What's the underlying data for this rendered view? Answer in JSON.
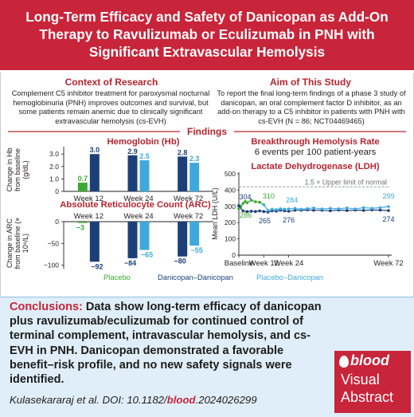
{
  "header": {
    "title": "Long-Term Efficacy and Safety of Danicopan as Add-On Therapy to Ravulizumab or Eculizumab in PNH with Significant Extravascular Hemolysis"
  },
  "context": {
    "title": "Context of Research",
    "text": "Complement C5 inhibitor treatment for paroxysmal nocturnal hemoglobinuria (PNH) improves outcomes and survival, but some patients remain anemic due to clinically significant extravascular hemolysis (cs-EVH)"
  },
  "aim": {
    "title": "Aim of This Study",
    "text": "To report the final long-term findings of a phase 3 study of danicopan, an oral complement factor D inhibitor, as an add-on therapy to a C5 inhibitor in patients with PNH with cs-EVH (N = 86; NCT04469465)"
  },
  "findings": {
    "label": "Findings"
  },
  "breakthrough": {
    "title": "Breakthrough Hemolysis Rate",
    "text": "6 events per 100 patient-years"
  },
  "colors": {
    "placebo": "#3aaa35",
    "danicopan": "#1c3f7a",
    "placebo_danicopan": "#3fa9dd",
    "brand_red": "#c8243a"
  },
  "legend": {
    "placebo": "Placebo",
    "danicopan": "Danicopan–Danicopan",
    "placebo_danicopan": "Placebo–Danicopan"
  },
  "chart_data": [
    {
      "type": "bar",
      "title": "Hemoglobin (Hb)",
      "ylabel": "Change in Hb from baseline (g/dL)",
      "categories": [
        "Week 12",
        "Week 24",
        "Week 72"
      ],
      "yticks": [
        "0",
        "1.0",
        "2.0",
        "3.0"
      ],
      "ylim": [
        0,
        3.4
      ],
      "series": [
        {
          "name": "Placebo",
          "values": [
            0.7,
            null,
            null
          ],
          "labels": [
            "0.7",
            "",
            ""
          ]
        },
        {
          "name": "Danicopan–Danicopan",
          "values": [
            3.0,
            2.9,
            2.8
          ],
          "labels": [
            "3.0",
            "2.9",
            "2.8"
          ]
        },
        {
          "name": "Placebo–Danicopan",
          "values": [
            null,
            2.5,
            2.3
          ],
          "labels": [
            "",
            "2.5",
            "2.3"
          ]
        }
      ]
    },
    {
      "type": "bar",
      "title": "Absolute Reticulocyte Count (ARC)",
      "ylabel": "Change in ARC from baseline (× 10⁹/L)",
      "categories": [
        "Week 12",
        "Week 24",
        "Week 72"
      ],
      "yticks": [
        "0",
        "−50",
        "−100"
      ],
      "ylim": [
        -108,
        0
      ],
      "series": [
        {
          "name": "Placebo",
          "values": [
            -3,
            null,
            null
          ],
          "labels": [
            "−3",
            "",
            ""
          ]
        },
        {
          "name": "Danicopan–Danicopan",
          "values": [
            -92,
            -84,
            -80
          ],
          "labels": [
            "−92",
            "−84",
            "−80"
          ]
        },
        {
          "name": "Placebo–Danicopan",
          "values": [
            null,
            -65,
            -55
          ],
          "labels": [
            "",
            "−65",
            "−55"
          ]
        }
      ]
    },
    {
      "type": "line",
      "title": "Lactate Dehydrogenase (LDH)",
      "ylabel": "Mean LDH (U/L)",
      "xticks": [
        "Baseline",
        "Week 12",
        "Week 24",
        "Week 72"
      ],
      "yticks": [
        "0",
        "100",
        "200",
        "300",
        "400",
        "500"
      ],
      "ylim": [
        0,
        500
      ],
      "xlim": [
        0,
        72
      ],
      "reference": {
        "label": "1.5 × Upper limit of normal",
        "value": 420
      },
      "series": [
        {
          "name": "Placebo",
          "x": [
            0,
            1,
            2,
            3,
            4,
            6,
            8,
            10,
            12
          ],
          "y": [
            286,
            300,
            318,
            330,
            322,
            338,
            328,
            325,
            310
          ]
        },
        {
          "name": "Danicopan–Danicopan",
          "x": [
            0,
            2,
            4,
            6,
            8,
            10,
            12,
            14,
            16,
            18,
            20,
            22,
            24,
            27,
            30,
            33,
            36,
            40,
            44,
            48,
            52,
            56,
            60,
            64,
            68,
            72
          ],
          "y": [
            304,
            272,
            268,
            270,
            268,
            272,
            268,
            265,
            272,
            270,
            276,
            272,
            270,
            276,
            276,
            278,
            276,
            276,
            273,
            277,
            274,
            277,
            275,
            278,
            277,
            274
          ]
        },
        {
          "name": "Placebo–Danicopan",
          "x": [
            12,
            14,
            16,
            18,
            20,
            22,
            24,
            27,
            30,
            33,
            36,
            40,
            44,
            48,
            52,
            56,
            60,
            64,
            68,
            72
          ],
          "y": [
            310,
            275,
            282,
            280,
            285,
            283,
            284,
            288,
            282,
            286,
            290,
            284,
            288,
            285,
            290,
            284,
            292,
            288,
            292,
            299
          ]
        }
      ],
      "point_labels": [
        {
          "text": "304",
          "series": "Danicopan–Danicopan"
        },
        {
          "text": "286",
          "series": "Placebo"
        },
        {
          "text": "310",
          "series": "Placebo"
        },
        {
          "text": "265",
          "series": "Danicopan–Danicopan"
        },
        {
          "text": "284",
          "series": "Placebo–Danicopan"
        },
        {
          "text": "276",
          "series": "Danicopan–Danicopan"
        },
        {
          "text": "299",
          "series": "Placebo–Danicopan"
        },
        {
          "text": "274",
          "series": "Danicopan–Danicopan"
        }
      ]
    }
  ],
  "conclusions": {
    "lead": "Conclusions:",
    "text": "Data show long-term efficacy of danicopan plus ravulizumab/eculizumab for continued control of terminal complement, intravascular hemolysis, and cs-EVH in PNH. Danicopan demonstrated a favorable benefit–risk profile, and no new safety signals were identified."
  },
  "citation": {
    "prefix": "Kulasekararaj et al. DOI: 10.1182/",
    "journal": "blood",
    "suffix": ".2024026299"
  },
  "badge": {
    "brand": "blood",
    "line1": "Visual",
    "line2": "Abstract"
  }
}
